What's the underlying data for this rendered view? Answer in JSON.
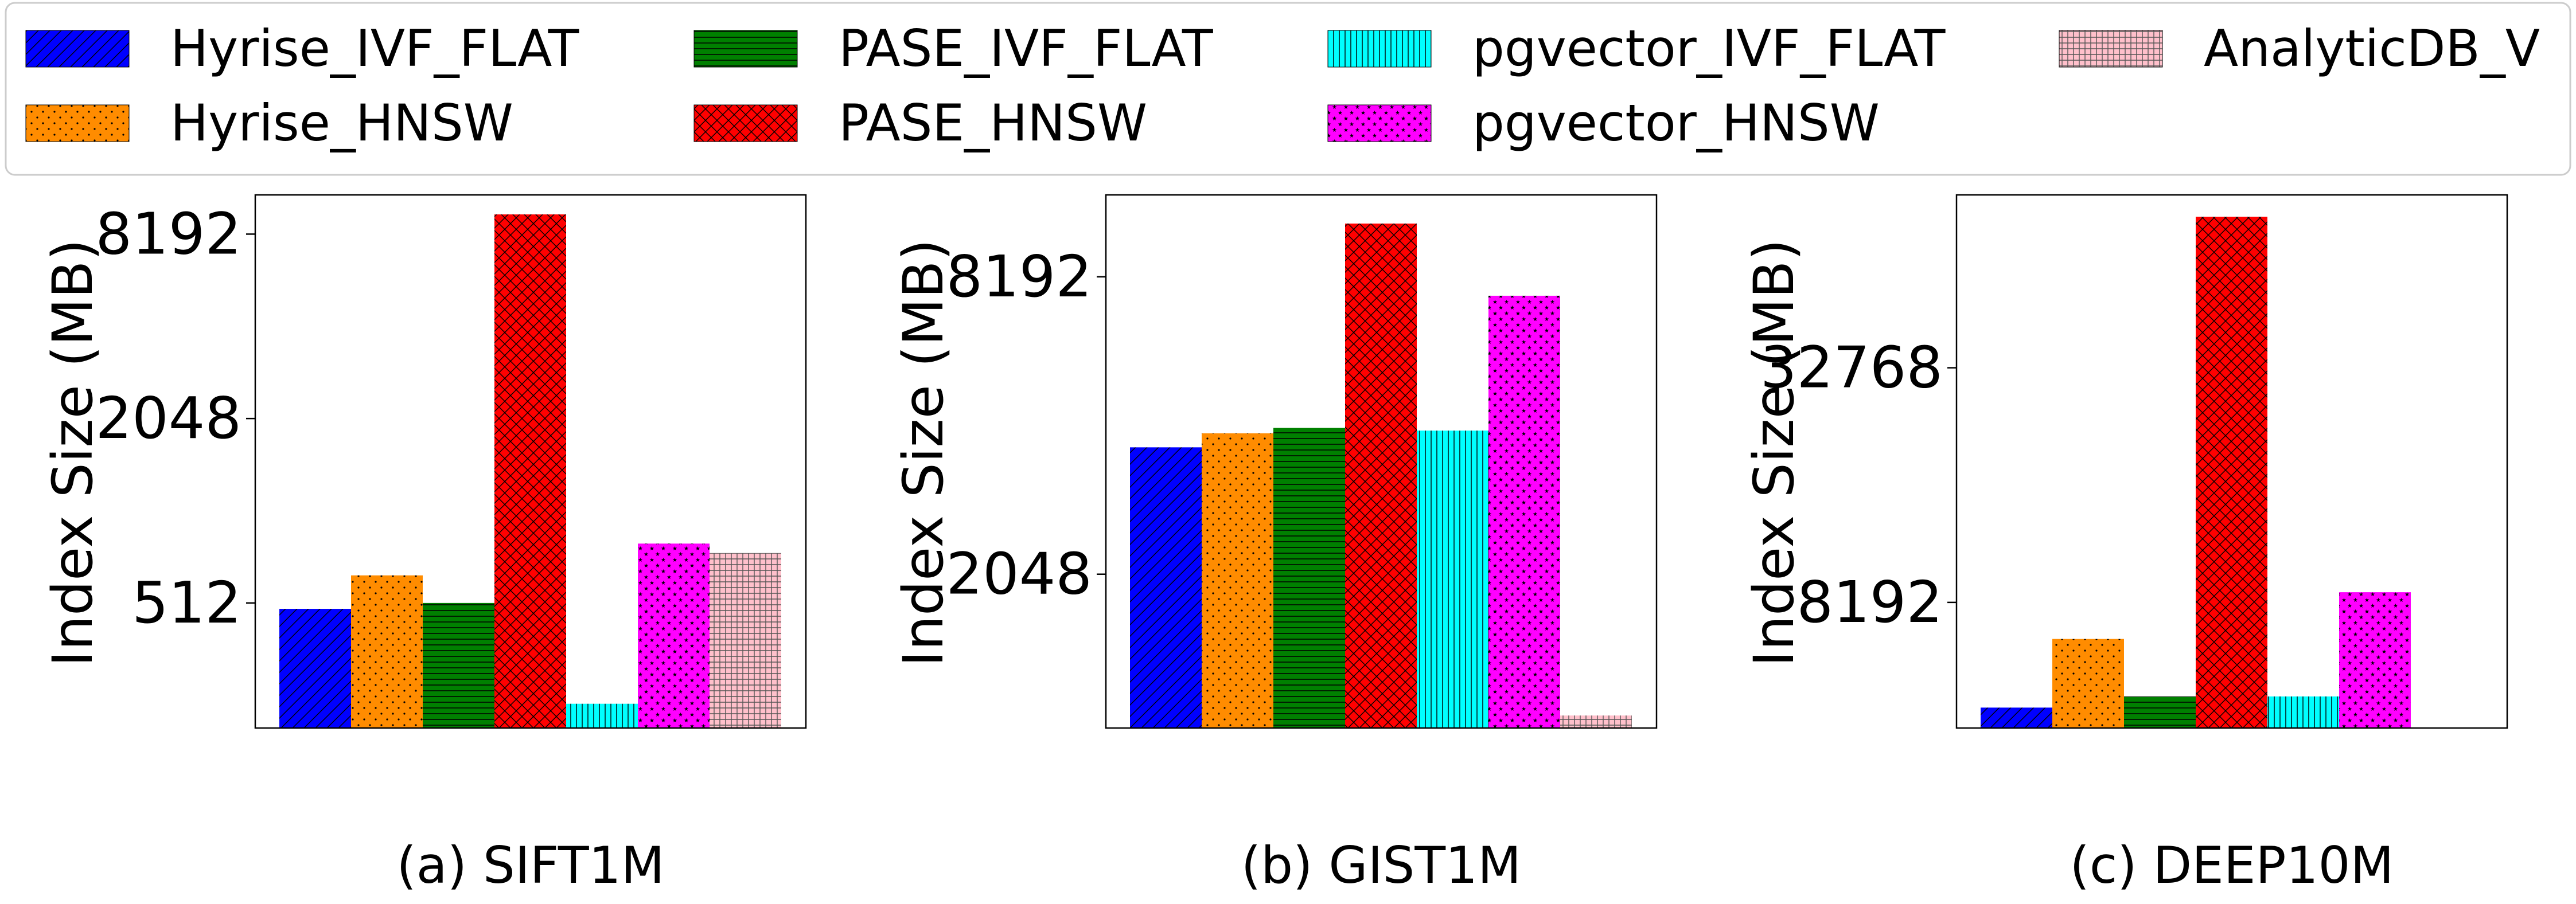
{
  "legend": {
    "placement": "top",
    "items": [
      {
        "label": "Hyrise_IVF_FLAT",
        "color": "#0000ff",
        "pattern": "diag"
      },
      {
        "label": "PASE_IVF_FLAT",
        "color": "#008000",
        "pattern": "hlines"
      },
      {
        "label": "pgvector_IVF_FLAT",
        "color": "#00ffff",
        "pattern": "vlines"
      },
      {
        "label": "AnalyticDB_V",
        "color": "#ffc0cb",
        "pattern": "grid"
      },
      {
        "label": "Hyrise_HNSW",
        "color": "#ff8c00",
        "pattern": "dots"
      },
      {
        "label": "PASE_HNSW",
        "color": "#ff0000",
        "pattern": "crosshatch"
      },
      {
        "label": "pgvector_HNSW",
        "color": "#ff00ff",
        "pattern": "stars"
      }
    ]
  },
  "chart_data": [
    {
      "type": "bar",
      "title": "(a) SIFT1M",
      "ylabel": "Index Size (MB)",
      "yscale": "log2",
      "ylim": [
        200,
        11000
      ],
      "yticks": [
        512,
        2048,
        8192
      ],
      "ytick_labels": [
        "512",
        "2048",
        "8192"
      ],
      "series": [
        {
          "name": "Hyrise_IVF_FLAT",
          "value": 490
        },
        {
          "name": "Hyrise_HNSW",
          "value": 630
        },
        {
          "name": "PASE_IVF_FLAT",
          "value": 512
        },
        {
          "name": "PASE_HNSW",
          "value": 9500
        },
        {
          "name": "pgvector_IVF_FLAT",
          "value": 240
        },
        {
          "name": "pgvector_HNSW",
          "value": 800
        },
        {
          "name": "AnalyticDB_V",
          "value": 745
        }
      ]
    },
    {
      "type": "bar",
      "title": "(b) GIST1M",
      "ylabel": "Index Size (MB)",
      "yscale": "log2",
      "ylim": [
        1000,
        12000
      ],
      "yticks": [
        2048,
        8192
      ],
      "ytick_labels": [
        "2048",
        "8192"
      ],
      "series": [
        {
          "name": "Hyrise_IVF_FLAT",
          "value": 3700
        },
        {
          "name": "Hyrise_HNSW",
          "value": 3950
        },
        {
          "name": "PASE_IVF_FLAT",
          "value": 4050
        },
        {
          "name": "PASE_HNSW",
          "value": 10500
        },
        {
          "name": "pgvector_IVF_FLAT",
          "value": 4000
        },
        {
          "name": "pgvector_HNSW",
          "value": 7500
        },
        {
          "name": "AnalyticDB_V",
          "value": 1060
        }
      ]
    },
    {
      "type": "bar",
      "title": "(c) DEEP10M",
      "ylabel": "Index Size (MB)",
      "yscale": "log2",
      "ylim": [
        3900,
        91000
      ],
      "yticks": [
        8192,
        32768
      ],
      "ytick_labels": [
        "8192",
        "32768"
      ],
      "series": [
        {
          "name": "Hyrise_IVF_FLAT",
          "value": 4400
        },
        {
          "name": "Hyrise_HNSW",
          "value": 6600
        },
        {
          "name": "PASE_IVF_FLAT",
          "value": 4700
        },
        {
          "name": "PASE_HNSW",
          "value": 80000
        },
        {
          "name": "pgvector_IVF_FLAT",
          "value": 4700
        },
        {
          "name": "pgvector_HNSW",
          "value": 8700
        }
      ]
    }
  ]
}
